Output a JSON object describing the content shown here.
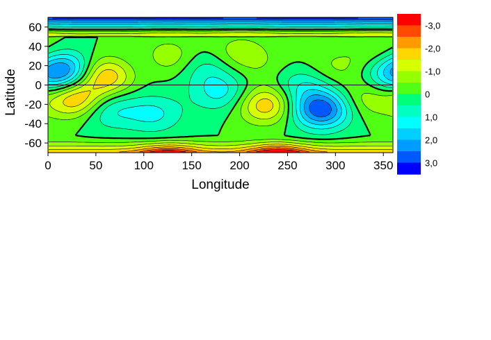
{
  "chart_data": {
    "type": "heatmap",
    "subtype": "filled-contour",
    "xlabel": "Longitude",
    "ylabel": "Latitude",
    "xlim": [
      0,
      360
    ],
    "ylim": [
      -70,
      70
    ],
    "xticks": [
      0,
      50,
      100,
      150,
      200,
      250,
      300,
      350
    ],
    "yticks": [
      60,
      40,
      20,
      0,
      -20,
      -40,
      -60
    ],
    "grid": false,
    "zero_latitude_line": true,
    "colorbar": {
      "position": "right",
      "levels_top_to_bottom": [
        "-3,0",
        "-2,0",
        "-1,0",
        "0",
        "1,0",
        "2,0",
        "3,0"
      ],
      "colors_top_to_bottom": [
        "#ff0000",
        "#ff4a00",
        "#ff9a00",
        "#ffd700",
        "#d6ff00",
        "#96ff00",
        "#50ff14",
        "#00ff7a",
        "#00ffc0",
        "#00ffff",
        "#00cfff",
        "#009cff",
        "#0058ff",
        "#0000ff"
      ]
    },
    "field_peaks": [
      {
        "lon": 18,
        "lat": 15,
        "value": 2.2
      },
      {
        "lon": 30,
        "lat": -15,
        "value": -2.2
      },
      {
        "lon": 60,
        "lat": 10,
        "value": -2.1
      },
      {
        "lon": 60,
        "lat": -25,
        "value": 1.2
      },
      {
        "lon": 110,
        "lat": -30,
        "value": 1.1
      },
      {
        "lon": 95,
        "lat": 20,
        "value": 0.5
      },
      {
        "lon": 125,
        "lat": 28,
        "value": -1.0
      },
      {
        "lon": 165,
        "lat": 18,
        "value": 0.8
      },
      {
        "lon": 182,
        "lat": -8,
        "value": 1.2
      },
      {
        "lon": 200,
        "lat": 32,
        "value": -0.9
      },
      {
        "lon": 228,
        "lat": -20,
        "value": -2.0
      },
      {
        "lon": 232,
        "lat": 15,
        "value": -0.3
      },
      {
        "lon": 262,
        "lat": 0,
        "value": 1.0
      },
      {
        "lon": 285,
        "lat": -25,
        "value": 3.0
      },
      {
        "lon": 300,
        "lat": 18,
        "value": -0.6
      },
      {
        "lon": 345,
        "lat": 35,
        "value": -0.6
      },
      {
        "lon": 360,
        "lat": 10,
        "value": 1.0
      },
      {
        "lon": 330,
        "lat": -15,
        "value": -0.9
      }
    ],
    "band_structure": {
      "north_polar": "strong negative-to-positive banding near 60-70, blue at top edge",
      "south_polar": "orange/red band below -60, stronger near 120 and 240 longitude"
    }
  }
}
